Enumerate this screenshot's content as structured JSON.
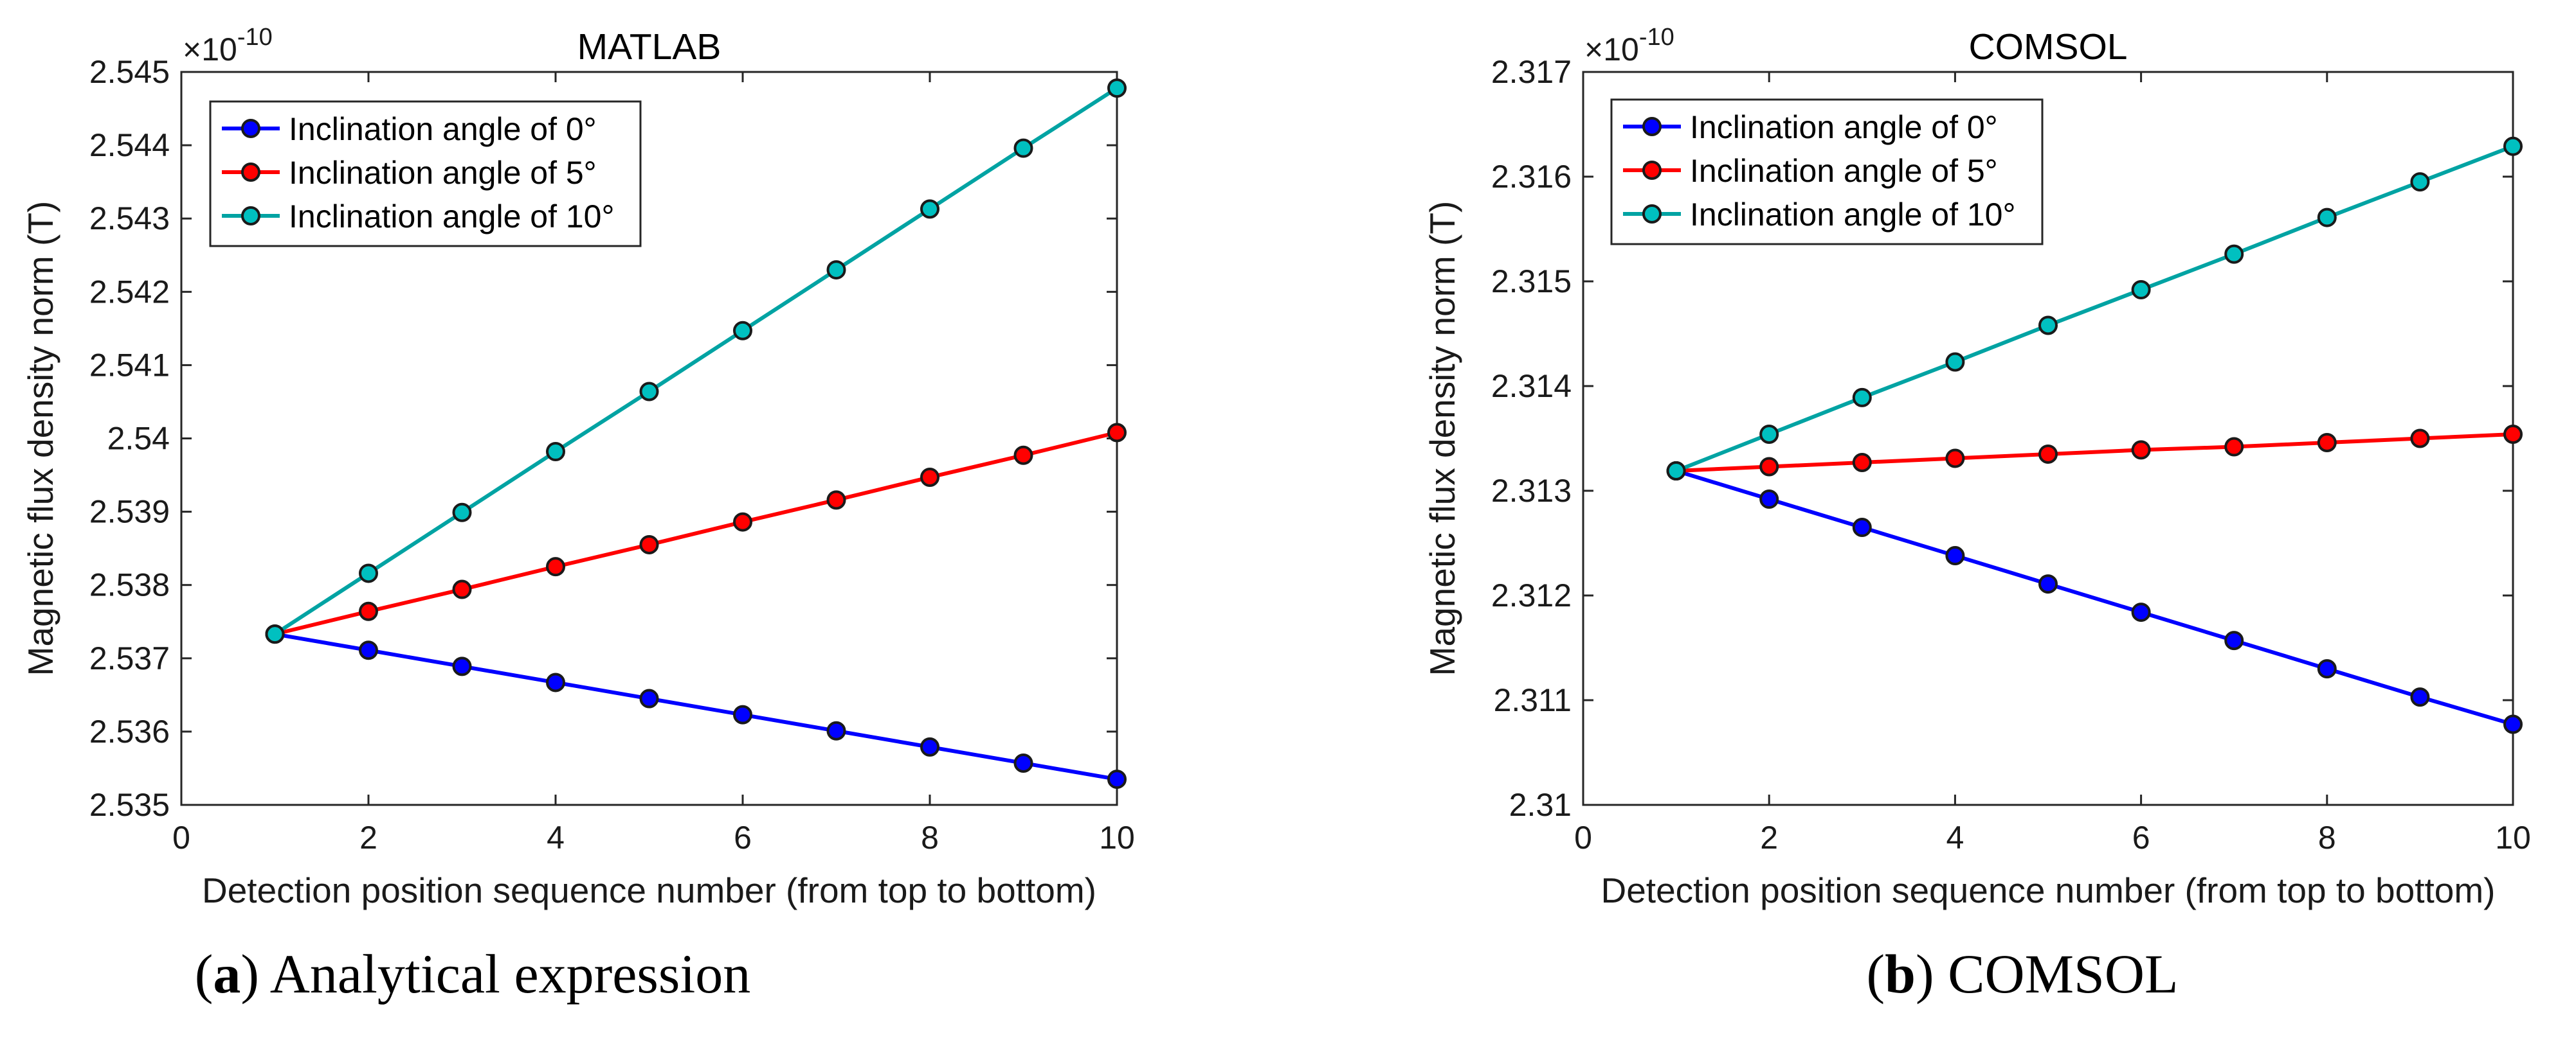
{
  "chart_data": [
    {
      "type": "line",
      "title": "MATLAB",
      "xlabel": "Detection position sequence number (from top to bottom)",
      "ylabel": "Magnetic flux density norm (T)",
      "y_multiplier_base": "×10",
      "y_multiplier_exp": "-10",
      "xlim": [
        0,
        10
      ],
      "ylim": [
        2.535,
        2.545
      ],
      "xticks": [
        "0",
        "2",
        "4",
        "6",
        "8",
        "10"
      ],
      "yticks": [
        "2.535",
        "2.536",
        "2.537",
        "2.538",
        "2.539",
        "2.54",
        "2.541",
        "2.542",
        "2.543",
        "2.544",
        "2.545"
      ],
      "legend_position": "top-left",
      "caption_letter": "a",
      "caption_text": " Analytical expression",
      "x": [
        1,
        2,
        3,
        4,
        5,
        6,
        7,
        8,
        9,
        10
      ],
      "series": [
        {
          "name": "Inclination angle of 0°",
          "color": "#0000ff",
          "values": [
            2.53733,
            2.53711,
            2.53689,
            2.53667,
            2.53645,
            2.53623,
            2.53601,
            2.53579,
            2.53557,
            2.53535
          ]
        },
        {
          "name": "Inclination angle of 5°",
          "color": "#ff0000",
          "values": [
            2.53733,
            2.53764,
            2.53794,
            2.53825,
            2.53855,
            2.53886,
            2.53916,
            2.53947,
            2.53977,
            2.54008
          ]
        },
        {
          "name": "Inclination angle of 10°",
          "color": "#00c0c0",
          "line_color": "#00a3a3",
          "values": [
            2.53733,
            2.53816,
            2.53899,
            2.53982,
            2.54064,
            2.54147,
            2.5423,
            2.54313,
            2.54396,
            2.54478
          ]
        }
      ]
    },
    {
      "type": "line",
      "title": "COMSOL",
      "xlabel": "Detection position sequence number (from top to bottom)",
      "ylabel": "Magnetic flux density norm (T)",
      "y_multiplier_base": "×10",
      "y_multiplier_exp": "-10",
      "xlim": [
        0,
        10
      ],
      "ylim": [
        2.31,
        2.317
      ],
      "xticks": [
        "0",
        "2",
        "4",
        "6",
        "8",
        "10"
      ],
      "yticks": [
        "2.31",
        "2.311",
        "2.312",
        "2.313",
        "2.314",
        "2.315",
        "2.316",
        "2.317"
      ],
      "legend_position": "top-left",
      "caption_letter": "b",
      "caption_text": " COMSOL",
      "x": [
        1,
        2,
        3,
        4,
        5,
        6,
        7,
        8,
        9,
        10
      ],
      "series": [
        {
          "name": "Inclination angle of 0°",
          "color": "#0000ff",
          "values": [
            2.31319,
            2.31292,
            2.31265,
            2.31238,
            2.31211,
            2.31184,
            2.31157,
            2.3113,
            2.31103,
            2.31077
          ]
        },
        {
          "name": "Inclination angle of 5°",
          "color": "#ff0000",
          "values": [
            2.31319,
            2.31323,
            2.31327,
            2.31331,
            2.31335,
            2.31339,
            2.31342,
            2.31346,
            2.3135,
            2.31354
          ]
        },
        {
          "name": "Inclination angle of 10°",
          "color": "#00c0c0",
          "line_color": "#00a3a3",
          "values": [
            2.31319,
            2.31354,
            2.31389,
            2.31423,
            2.31458,
            2.31492,
            2.31526,
            2.31561,
            2.31595,
            2.31629
          ]
        }
      ]
    }
  ]
}
